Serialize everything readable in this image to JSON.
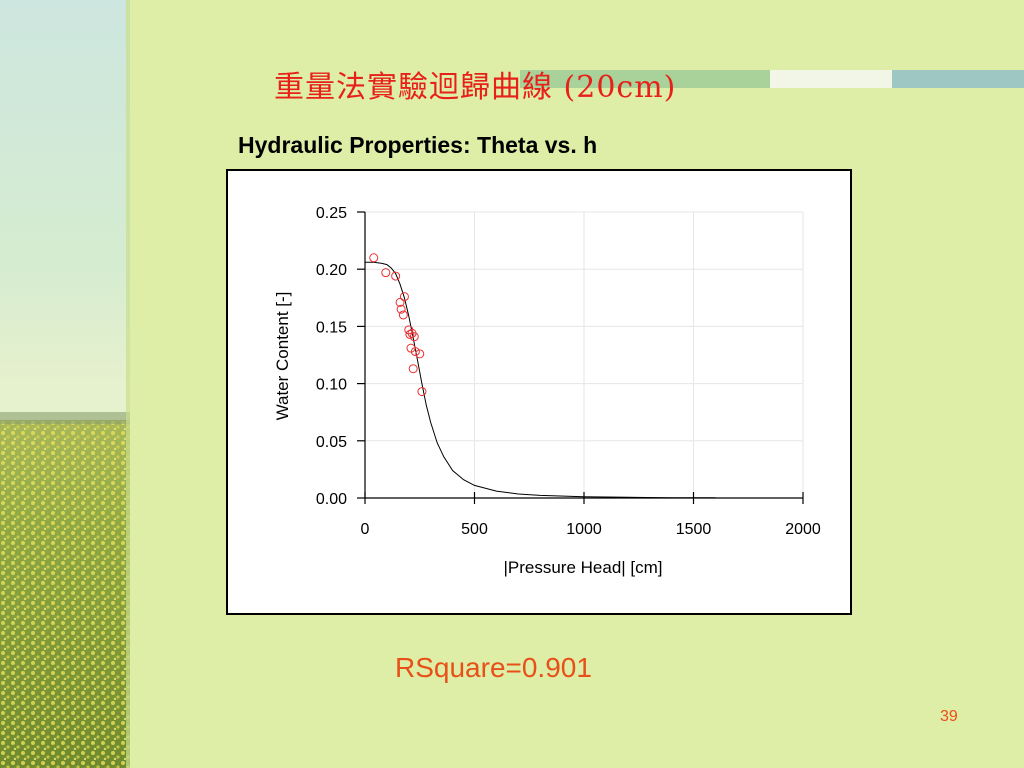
{
  "slide": {
    "title": "重量法實驗迴歸曲線 (20cm)",
    "chart_heading": "Hydraulic Properties:  Theta vs. h",
    "rsquare": "RSquare=0.901",
    "page_number": "39",
    "colors": {
      "background": "#deeea6",
      "title": "#e8201a",
      "accent": "#e8501a",
      "marker": "#e83030"
    }
  },
  "chart_data": {
    "type": "scatter",
    "title": "",
    "xlabel": "|Pressure Head| [cm]",
    "ylabel": "Water Content [-]",
    "xlim": [
      0,
      2000
    ],
    "ylim": [
      0,
      0.25
    ],
    "xticks": [
      0,
      500,
      1000,
      1500,
      2000
    ],
    "yticks": [
      0.0,
      0.05,
      0.1,
      0.15,
      0.2,
      0.25
    ],
    "xtick_labels": [
      "0",
      "500",
      "1000",
      "1500",
      "2000"
    ],
    "ytick_labels": [
      "0.00",
      "0.05",
      "0.10",
      "0.15",
      "0.20",
      "0.25"
    ],
    "grid": true,
    "legend": "none",
    "series": [
      {
        "kind": "observed",
        "marker": "open-circle",
        "x": [
          40,
          95,
          140,
          160,
          165,
          175,
          180,
          200,
          205,
          215,
          210,
          225,
          220,
          230,
          250,
          260
        ],
        "y": [
          0.21,
          0.197,
          0.194,
          0.171,
          0.165,
          0.16,
          0.176,
          0.147,
          0.143,
          0.144,
          0.131,
          0.141,
          0.113,
          0.128,
          0.126,
          0.093
        ]
      },
      {
        "kind": "fitted",
        "marker": "line",
        "x": [
          0,
          40,
          80,
          100,
          120,
          140,
          160,
          180,
          200,
          220,
          240,
          260,
          280,
          300,
          330,
          360,
          400,
          450,
          500,
          600,
          700,
          800,
          1000,
          1200,
          1400,
          1600
        ],
        "y": [
          0.206,
          0.206,
          0.205,
          0.204,
          0.201,
          0.196,
          0.187,
          0.175,
          0.159,
          0.14,
          0.12,
          0.1,
          0.081,
          0.066,
          0.048,
          0.036,
          0.024,
          0.016,
          0.011,
          0.006,
          0.0035,
          0.0023,
          0.0011,
          0.0006,
          0.0003,
          0.0002
        ]
      }
    ]
  }
}
